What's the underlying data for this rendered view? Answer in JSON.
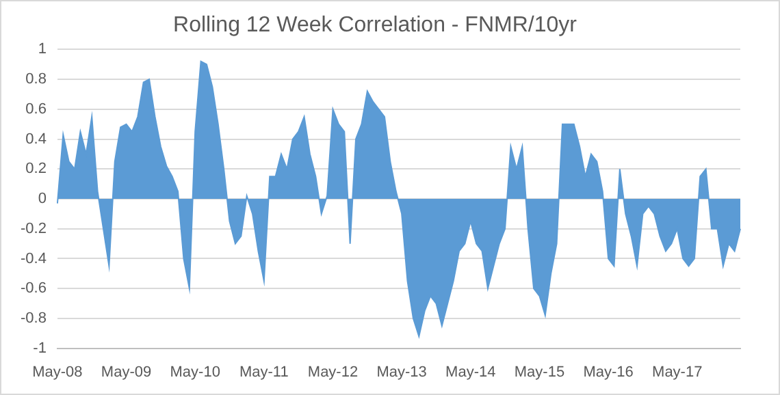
{
  "chart_data": {
    "type": "area",
    "title": "Rolling 12 Week Correlation - FNMR/10yr",
    "categories": [
      "May-08",
      null,
      null,
      null,
      null,
      null,
      null,
      null,
      null,
      null,
      null,
      null,
      "May-09",
      null,
      null,
      null,
      null,
      null,
      null,
      null,
      null,
      null,
      null,
      null,
      "May-10",
      null,
      null,
      null,
      null,
      null,
      null,
      null,
      null,
      null,
      null,
      null,
      "May-11",
      null,
      null,
      null,
      null,
      null,
      null,
      null,
      null,
      null,
      null,
      null,
      "May-12",
      null,
      null,
      null,
      null,
      null,
      null,
      null,
      null,
      null,
      null,
      null,
      "May-13",
      null,
      null,
      null,
      null,
      null,
      null,
      null,
      null,
      null,
      null,
      null,
      "May-14",
      null,
      null,
      null,
      null,
      null,
      null,
      null,
      null,
      null,
      null,
      null,
      "May-15",
      null,
      null,
      null,
      null,
      null,
      null,
      null,
      null,
      null,
      null,
      null,
      "May-16",
      null,
      null,
      null,
      null,
      null,
      null,
      null,
      null,
      null,
      null,
      null,
      "May-17",
      null,
      null,
      null,
      null,
      null,
      null,
      null,
      null,
      null,
      null,
      null
    ],
    "series": [
      {
        "color": "#5b9bd5",
        "values": [
          -0.03,
          0.43,
          0.25,
          0.2,
          0.45,
          0.3,
          0.55,
          0.05,
          -0.2,
          -0.45,
          0.25,
          0.48,
          0.5,
          0.45,
          0.55,
          0.78,
          0.8,
          0.55,
          0.35,
          0.22,
          0.15,
          0.05,
          -0.4,
          -0.6,
          0.45,
          0.92,
          0.9,
          0.75,
          0.5,
          0.2,
          -0.15,
          -0.3,
          -0.25,
          0.02,
          -0.1,
          -0.35,
          -0.55,
          0.15,
          0.15,
          0.3,
          0.2,
          0.4,
          0.45,
          0.55,
          0.3,
          0.15,
          -0.1,
          0.02,
          0.6,
          0.5,
          0.45,
          -0.3,
          0.4,
          0.5,
          0.72,
          0.65,
          0.6,
          0.55,
          0.25,
          0.05,
          -0.1,
          -0.55,
          -0.8,
          -0.92,
          -0.75,
          -0.65,
          -0.7,
          -0.85,
          -0.7,
          -0.55,
          -0.35,
          -0.3,
          -0.15,
          -0.3,
          -0.35,
          -0.6,
          -0.45,
          -0.3,
          -0.2,
          0.35,
          0.2,
          0.35,
          -0.2,
          -0.6,
          -0.65,
          -0.78,
          -0.5,
          -0.3,
          0.5,
          0.5,
          0.5,
          0.35,
          0.15,
          0.3,
          0.25,
          0.05,
          -0.4,
          -0.45,
          0.2,
          -0.1,
          -0.25,
          -0.45,
          -0.1,
          -0.05,
          -0.1,
          -0.25,
          -0.35,
          -0.3,
          -0.2,
          -0.4,
          -0.45,
          -0.4,
          0.15,
          0.2,
          -0.2,
          -0.2,
          -0.45,
          -0.3,
          -0.35,
          -0.2
        ]
      }
    ],
    "ylim": [
      -1,
      1
    ],
    "yticks": [
      -1,
      -0.8,
      -0.6,
      -0.4,
      -0.2,
      0,
      0.2,
      0.4,
      0.6,
      0.8,
      1
    ],
    "grid": "y",
    "legend": false
  }
}
